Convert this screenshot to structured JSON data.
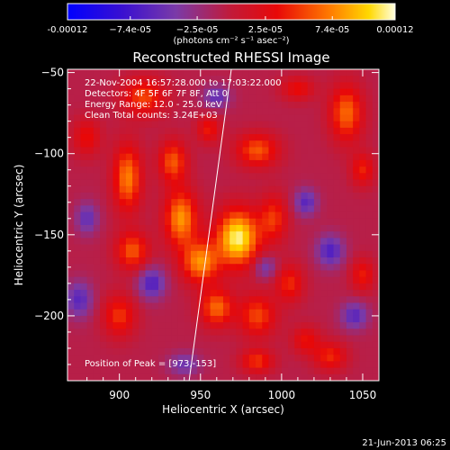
{
  "chart_data": {
    "type": "heatmap",
    "title": "Reconstructed RHESSI Image",
    "xlabel": "Heliocentric X (arcsec)",
    "ylabel": "Heliocentric Y (arcsec)",
    "xlim": [
      868,
      1060
    ],
    "ylim": [
      -240,
      -48
    ],
    "x_ticks": [
      900,
      950,
      1000,
      1050
    ],
    "y_ticks": [
      -50,
      -100,
      -150,
      -200
    ],
    "colorbar": {
      "range": [
        -0.00012,
        0.00012
      ],
      "tick_values": [
        -0.00012,
        -7.4e-05,
        -2.5e-05,
        2.5e-05,
        7.4e-05,
        0.00012
      ],
      "tick_labels": [
        "-0.00012",
        "−7.4e-05",
        "−2.5e-05",
        "2.5e-05",
        "7.4e-05",
        "0.00012"
      ],
      "units_label": "(photons cm⁻² s⁻¹ asec⁻²)",
      "colormap": "rainbow-to-yellow"
    },
    "annotations": [
      "22-Nov-2004 16:57:28.000 to 17:03:22.000",
      "Detectors: 4F 5F 6F 7F 8F, Att 0",
      "Energy Range: 12.0 - 25.0 keV",
      "Clean     Total counts: 3.24E+03"
    ],
    "peak_label": "Position of Peak = [973,-153]",
    "peak": [
      973,
      -153
    ],
    "limb_line": [
      [
        943,
        -240
      ],
      [
        969,
        -48
      ]
    ],
    "blobs": [
      {
        "x": 973,
        "y": -152,
        "sx": 9,
        "sy": 12,
        "amp": 1.0
      },
      {
        "x": 950,
        "y": -167,
        "sx": 8,
        "sy": 9,
        "amp": 0.7
      },
      {
        "x": 960,
        "y": -195,
        "sx": 7,
        "sy": 8,
        "amp": 0.6
      },
      {
        "x": 938,
        "y": -140,
        "sx": 7,
        "sy": 12,
        "amp": 0.72
      },
      {
        "x": 933,
        "y": -105,
        "sx": 6,
        "sy": 9,
        "amp": 0.55
      },
      {
        "x": 905,
        "y": -115,
        "sx": 6,
        "sy": 14,
        "amp": 0.66
      },
      {
        "x": 908,
        "y": -160,
        "sx": 7,
        "sy": 8,
        "amp": 0.55
      },
      {
        "x": 900,
        "y": -200,
        "sx": 7,
        "sy": 9,
        "amp": 0.45
      },
      {
        "x": 915,
        "y": -65,
        "sx": 9,
        "sy": 8,
        "amp": 0.5
      },
      {
        "x": 985,
        "y": -98,
        "sx": 9,
        "sy": 7,
        "amp": 0.55
      },
      {
        "x": 995,
        "y": -140,
        "sx": 6,
        "sy": 10,
        "amp": 0.45
      },
      {
        "x": 985,
        "y": -200,
        "sx": 8,
        "sy": 9,
        "amp": 0.5
      },
      {
        "x": 1005,
        "y": -180,
        "sx": 6,
        "sy": 8,
        "amp": 0.42
      },
      {
        "x": 1040,
        "y": -75,
        "sx": 7,
        "sy": 12,
        "amp": 0.6
      },
      {
        "x": 1050,
        "y": -110,
        "sx": 5,
        "sy": 7,
        "amp": 0.4
      },
      {
        "x": 1030,
        "y": -225,
        "sx": 7,
        "sy": 6,
        "amp": 0.42
      },
      {
        "x": 1050,
        "y": -175,
        "sx": 5,
        "sy": 7,
        "amp": 0.38
      },
      {
        "x": 1015,
        "y": -215,
        "sx": 6,
        "sy": 6,
        "amp": 0.35
      },
      {
        "x": 880,
        "y": -90,
        "sx": 6,
        "sy": 8,
        "amp": 0.35
      },
      {
        "x": 985,
        "y": -228,
        "sx": 7,
        "sy": 5,
        "amp": 0.45
      },
      {
        "x": 1010,
        "y": -60,
        "sx": 7,
        "sy": 5,
        "amp": 0.35
      },
      {
        "x": 955,
        "y": -85,
        "sx": 5,
        "sy": 6,
        "amp": 0.38
      },
      {
        "x": 1015,
        "y": -130,
        "sx": 5,
        "sy": 6,
        "amp": -0.45
      },
      {
        "x": 920,
        "y": -180,
        "sx": 6,
        "sy": 7,
        "amp": -0.5
      },
      {
        "x": 1030,
        "y": -160,
        "sx": 6,
        "sy": 7,
        "amp": -0.5
      },
      {
        "x": 875,
        "y": -190,
        "sx": 6,
        "sy": 8,
        "amp": -0.45
      },
      {
        "x": 960,
        "y": -65,
        "sx": 6,
        "sy": 5,
        "amp": -0.4
      },
      {
        "x": 1045,
        "y": -200,
        "sx": 6,
        "sy": 6,
        "amp": -0.45
      },
      {
        "x": 880,
        "y": -140,
        "sx": 5,
        "sy": 7,
        "amp": -0.4
      },
      {
        "x": 990,
        "y": -170,
        "sx": 5,
        "sy": 5,
        "amp": -0.35
      },
      {
        "x": 940,
        "y": -230,
        "sx": 7,
        "sy": 5,
        "amp": -0.35
      }
    ],
    "background_level": -0.05
  },
  "footer": {
    "timestamp": "21-Jun-2013 06:25"
  }
}
